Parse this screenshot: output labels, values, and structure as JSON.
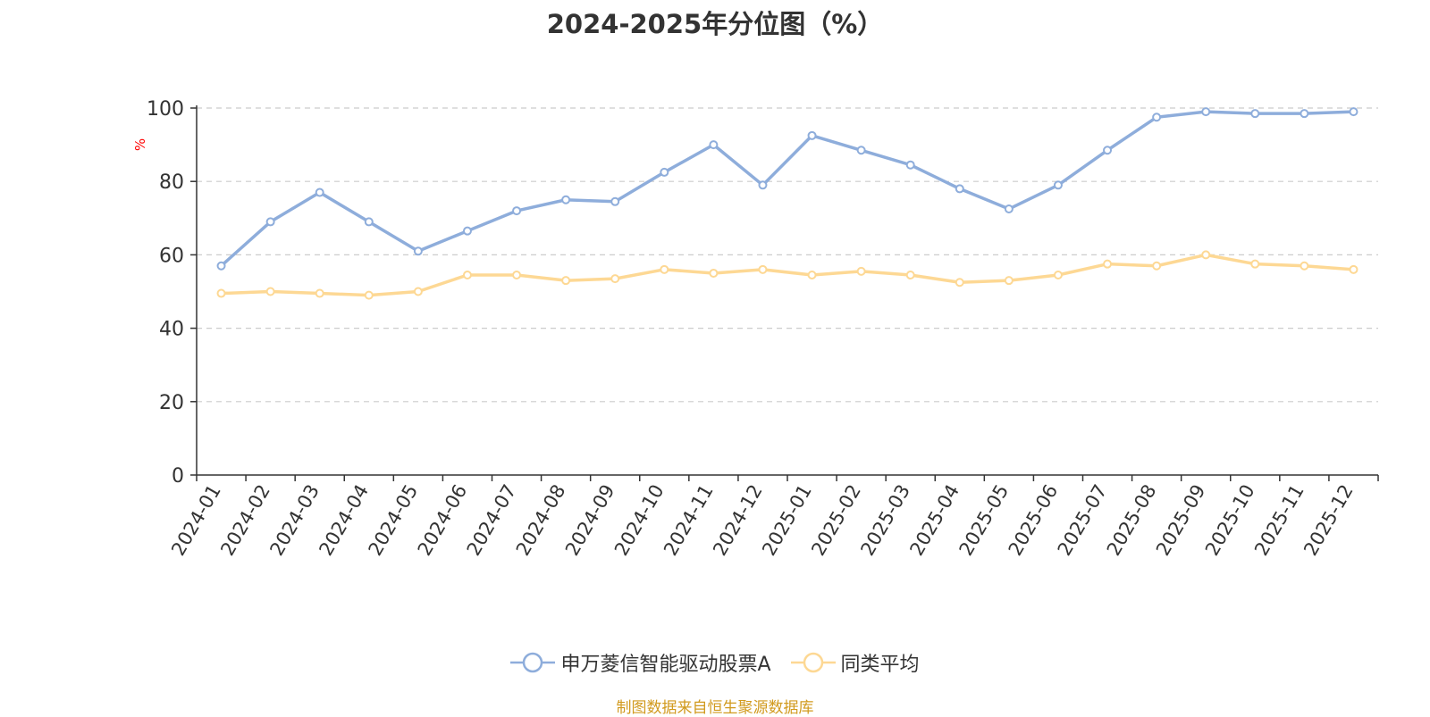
{
  "title": "2024-2025年分位图（%）",
  "source_note": "制图数据来自恒生聚源数据库",
  "colors": {
    "series_a": "#8eaddb",
    "series_b": "#fdd894",
    "axis": "#333333",
    "grid": "#cccccc",
    "unit": "#ff0000",
    "source": "#d19a1e"
  },
  "chart_data": {
    "type": "line",
    "title": "2024-2025年分位图（%）",
    "ylabel": "%",
    "ylim": [
      0,
      100
    ],
    "yticks": [
      0,
      20,
      40,
      60,
      80,
      100
    ],
    "grid": true,
    "legend_position": "bottom-center",
    "categories": [
      "2024-01",
      "2024-02",
      "2024-03",
      "2024-04",
      "2024-05",
      "2024-06",
      "2024-07",
      "2024-08",
      "2024-09",
      "2024-10",
      "2024-11",
      "2024-12",
      "2025-01",
      "2025-02",
      "2025-03",
      "2025-04",
      "2025-05",
      "2025-06",
      "2025-07",
      "2025-08",
      "2025-09",
      "2025-10",
      "2025-11",
      "2025-12"
    ],
    "series": [
      {
        "name": "申万菱信智能驱动股票A",
        "color": "#8eaddb",
        "values": [
          57,
          69,
          77,
          69,
          61,
          66.5,
          72,
          75,
          74.5,
          82.5,
          90,
          79,
          92.5,
          88.5,
          84.5,
          78,
          72.5,
          79,
          88.5,
          97.5,
          99,
          98.5,
          98.5,
          99
        ]
      },
      {
        "name": "同类平均",
        "color": "#fdd894",
        "values": [
          49.5,
          50,
          49.5,
          49,
          50,
          54.5,
          54.5,
          53,
          53.5,
          56,
          55,
          56,
          54.5,
          55.5,
          54.5,
          52.5,
          53,
          54.5,
          57.5,
          57,
          60,
          57.5,
          57,
          56
        ]
      }
    ]
  }
}
